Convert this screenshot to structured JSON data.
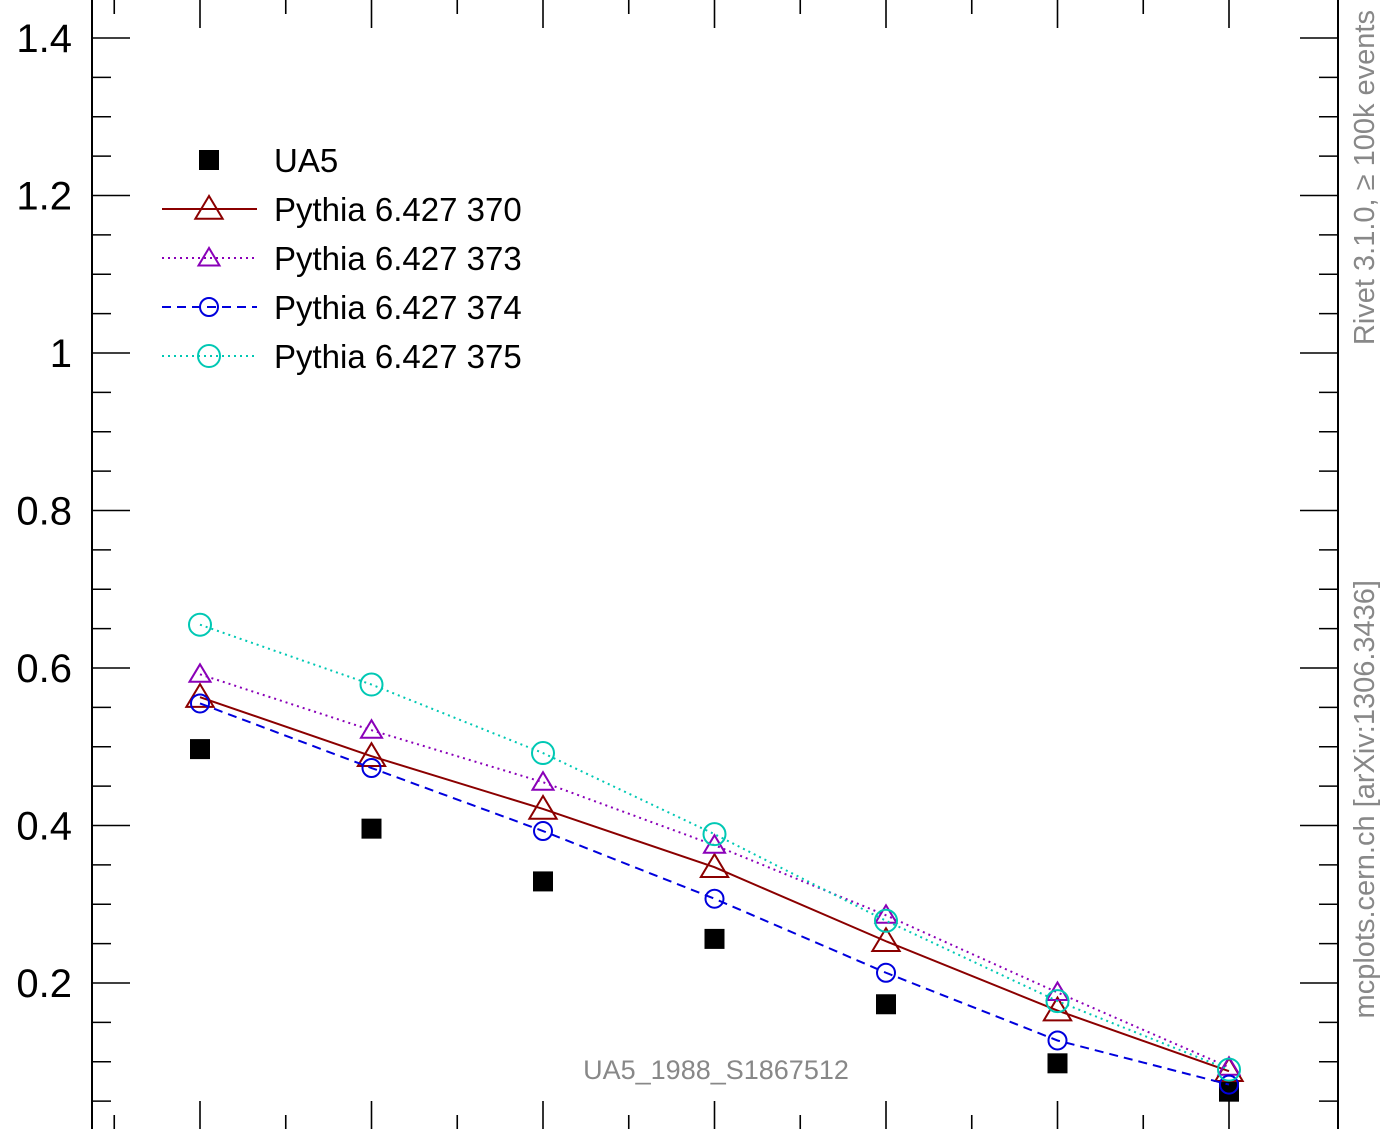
{
  "chart_data": {
    "type": "scatter",
    "title": "",
    "xlabel": "",
    "ylabel": "",
    "x": [
      1,
      2,
      3,
      4,
      5,
      6,
      7
    ],
    "xlim": [
      0.35,
      7.65
    ],
    "ylim": [
      0,
      1.45
    ],
    "y_ticks": [
      0.2,
      0.4,
      0.6,
      0.8,
      1,
      1.2,
      1.4
    ],
    "y_tick_labels": [
      "0.2",
      "0.4",
      "0.6",
      "0.8",
      "1",
      "1.2",
      "1.4"
    ],
    "legend_position": "top-left",
    "series": [
      {
        "name": "UA5",
        "style": "markers",
        "marker": "square",
        "color": "#000000",
        "values": [
          0.497,
          0.396,
          0.329,
          0.256,
          0.173,
          0.098,
          0.062
        ]
      },
      {
        "name": "Pythia 6.427 370",
        "style": "solid",
        "marker": "triangle",
        "color": "#8b0000",
        "values": [
          0.563,
          0.488,
          0.421,
          0.347,
          0.253,
          0.165,
          0.088
        ]
      },
      {
        "name": "Pythia 6.427 373",
        "style": "dotted",
        "marker": "triangle-small",
        "color": "#8a00b8",
        "values": [
          0.592,
          0.521,
          0.455,
          0.375,
          0.286,
          0.188,
          0.093
        ]
      },
      {
        "name": "Pythia 6.427 374",
        "style": "dashed",
        "marker": "circle-small",
        "color": "#0000dd",
        "values": [
          0.555,
          0.473,
          0.393,
          0.307,
          0.213,
          0.127,
          0.071
        ]
      },
      {
        "name": "Pythia 6.427 375",
        "style": "dotted",
        "marker": "circle",
        "color": "#00c8b4",
        "values": [
          0.655,
          0.579,
          0.492,
          0.389,
          0.279,
          0.177,
          0.09
        ]
      }
    ],
    "watermark": "UA5_1988_S1867512",
    "side_label_top": "Rivet 3.1.0, ≥ 100k events",
    "side_label_bottom": "mcplots.cern.ch [arXiv:1306.3436]"
  }
}
